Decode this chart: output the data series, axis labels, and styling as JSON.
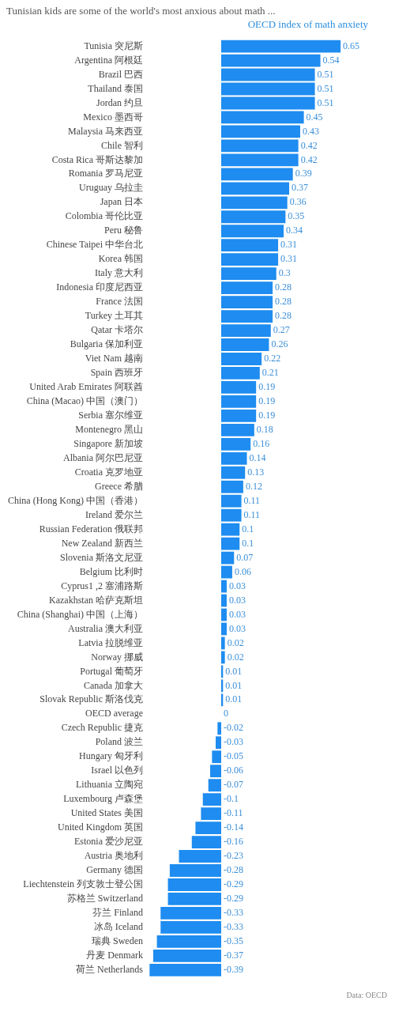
{
  "chart_data": {
    "type": "bar",
    "orientation": "horizontal",
    "title": "Tunisian kids are some of the world's most anxious about math ...",
    "xlabel": "OECD index of math anxiety",
    "categories": [
      "Tunisia 突尼斯",
      "Argentina 阿根廷",
      "Brazil 巴西",
      "Thailand 泰国",
      "Jordan 约旦",
      "Mexico 墨西哥",
      "Malaysia 马来西亚",
      "Chile 智利",
      "Costa Rica 哥斯达黎加",
      "Romania 罗马尼亚",
      "Uruguay 乌拉圭",
      "Japan 日本",
      "Colombia 哥伦比亚",
      "Peru 秘鲁",
      "Chinese Taipei 中华台北",
      "Korea 韩国",
      "Italy 意大利",
      "Indonesia 印度尼西亚",
      "France 法国",
      "Turkey 土耳其",
      "Qatar 卡塔尔",
      "Bulgaria 保加利亚",
      "Viet Nam 越南",
      "Spain 西班牙",
      "United Arab Emirates 阿联酋",
      "China (Macao) 中国（澳门）",
      "Serbia 塞尔维亚",
      "Montenegro 黑山",
      "Singapore 新加坡",
      "Albania 阿尔巴尼亚",
      "Croatia 克罗地亚",
      "Greece 希腊",
      "China (Hong Kong) 中国（香港）",
      "Ireland 爱尔兰",
      "Russian Federation 俄联邦",
      "New Zealand 新西兰",
      "Slovenia 斯洛文尼亚",
      "Belgium 比利时",
      "Cyprus1 ,2 塞浦路斯",
      "Kazakhstan 哈萨克斯坦",
      "China (Shanghai) 中国（上海）",
      "Australia 澳大利亚",
      "Latvia 拉脱维亚",
      "Norway 挪威",
      "Portugal 葡萄牙",
      "Canada 加拿大",
      "Slovak Republic 斯洛伐克",
      "OECD average",
      "Czech Republic 捷克",
      "Poland 波兰",
      "Hungary 匈牙利",
      "Israel 以色列",
      "Lithuania 立陶宛",
      "Luxembourg 卢森堡",
      "United States 美国",
      "United Kingdom 英国",
      "Estonia 爱沙尼亚",
      "Austria 奥地利",
      "Germany 德国",
      "Liechtenstein 列支敦士登公国",
      "苏格兰 Switzerland",
      "芬兰 Finland",
      "冰岛 Iceland",
      "瑞典 Sweden",
      "丹麦 Denmark",
      "荷兰 Netherlands"
    ],
    "values": [
      0.65,
      0.54,
      0.51,
      0.51,
      0.51,
      0.45,
      0.43,
      0.42,
      0.42,
      0.39,
      0.37,
      0.36,
      0.35,
      0.34,
      0.31,
      0.31,
      0.3,
      0.28,
      0.28,
      0.28,
      0.27,
      0.26,
      0.22,
      0.21,
      0.19,
      0.19,
      0.19,
      0.18,
      0.16,
      0.14,
      0.13,
      0.12,
      0.11,
      0.11,
      0.1,
      0.1,
      0.07,
      0.06,
      0.03,
      0.03,
      0.03,
      0.03,
      0.02,
      0.02,
      0.01,
      0.01,
      0.01,
      0,
      -0.02,
      -0.03,
      -0.05,
      -0.06,
      -0.07,
      -0.1,
      -0.11,
      -0.14,
      -0.16,
      -0.23,
      -0.28,
      -0.29,
      -0.29,
      -0.33,
      -0.33,
      -0.35,
      -0.37,
      -0.39
    ],
    "color": "#1e8cf0",
    "tick_labels": "y",
    "grid": false,
    "data_labels": true,
    "annotations": [
      "Data: OECD"
    ]
  }
}
